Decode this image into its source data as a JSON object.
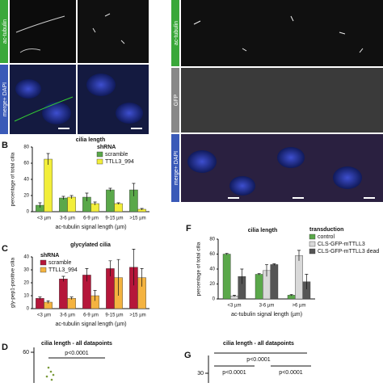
{
  "chart_data": [
    {
      "type": "bar",
      "panel_label": "B",
      "title": "cilia length",
      "y_label": "percentage of total cilia",
      "x_label": "ac-tubulin signal length (µm)",
      "legend_title": "shRNA",
      "categories": [
        "<3 µm",
        "3-6 µm",
        "6-9 µm",
        "9-15 µm",
        ">15 µm"
      ],
      "series": [
        {
          "name": "scramble",
          "color": "#5aa84a",
          "values": [
            8,
            17,
            18,
            27,
            27
          ],
          "errors": [
            3,
            2,
            5,
            2,
            8
          ]
        },
        {
          "name": "TTLL3_994",
          "color": "#f2ee3a",
          "values": [
            65,
            18,
            10,
            10,
            3
          ],
          "errors": [
            7,
            2,
            2,
            1,
            1
          ]
        }
      ],
      "ylim": [
        0,
        80
      ],
      "yticks": [
        0,
        20,
        40,
        60,
        80
      ]
    },
    {
      "type": "bar",
      "panel_label": "C",
      "title": "glycylated cilia",
      "y_label": "gly-pep1-positive cilia",
      "x_label": "ac-tubulin signal length (µm)",
      "legend_title": "shRNA",
      "categories": [
        "<3 µm",
        "3-6 µm",
        "6-9 µm",
        "9-15 µm",
        ">15 µm"
      ],
      "series": [
        {
          "name": "scramble",
          "color": "#b5163a",
          "values": [
            8,
            23,
            26,
            31,
            32
          ],
          "errors": [
            1,
            2,
            5,
            6,
            14
          ]
        },
        {
          "name": "TTLL3_994",
          "color": "#f4b340",
          "values": [
            5,
            8,
            10,
            24,
            24
          ],
          "errors": [
            1,
            1,
            4,
            14,
            7
          ]
        }
      ],
      "ylim": [
        0,
        40
      ],
      "yticks": [
        0,
        10,
        20,
        30,
        40
      ]
    },
    {
      "type": "bar",
      "panel_label": "F",
      "title": "cilia length",
      "y_label": "percentage of total cilia",
      "x_label": "ac-tubulin signal length (µm)",
      "legend_title": "transduction",
      "categories": [
        "<3 µm",
        "3-6 µm",
        ">6 µm"
      ],
      "series": [
        {
          "name": "control",
          "color": "#5aa84a",
          "values": [
            60,
            33,
            5
          ],
          "errors": [
            1,
            1,
            1
          ]
        },
        {
          "name": "CLS-GFP-mTTLL3",
          "color": "#d9d9d9",
          "values": [
            4,
            38,
            58
          ],
          "errors": [
            1,
            8,
            7
          ]
        },
        {
          "name": "CLS-GFP-mTTLL3 dead",
          "color": "#555555",
          "values": [
            30,
            46,
            23
          ],
          "errors": [
            10,
            1,
            10
          ]
        }
      ],
      "ylim": [
        0,
        80
      ],
      "yticks": [
        0,
        20,
        40,
        60,
        80
      ]
    }
  ],
  "image_labels": {
    "left": [
      "ac-tubulin",
      "merge+ DAPI"
    ],
    "right": [
      "ac-tubulin",
      "GFP",
      "merge+ DAPI"
    ]
  },
  "panel_d": {
    "label": "D",
    "title": "cilia length - all datapoints",
    "ytick": "60",
    "pvalue": "p<0.0001"
  },
  "panel_g": {
    "label": "G",
    "title": "cilia length - all datapoints",
    "ytick": "30",
    "pvalues": [
      "p<0.0001",
      "p<0.0001",
      "p<0.0001"
    ]
  }
}
